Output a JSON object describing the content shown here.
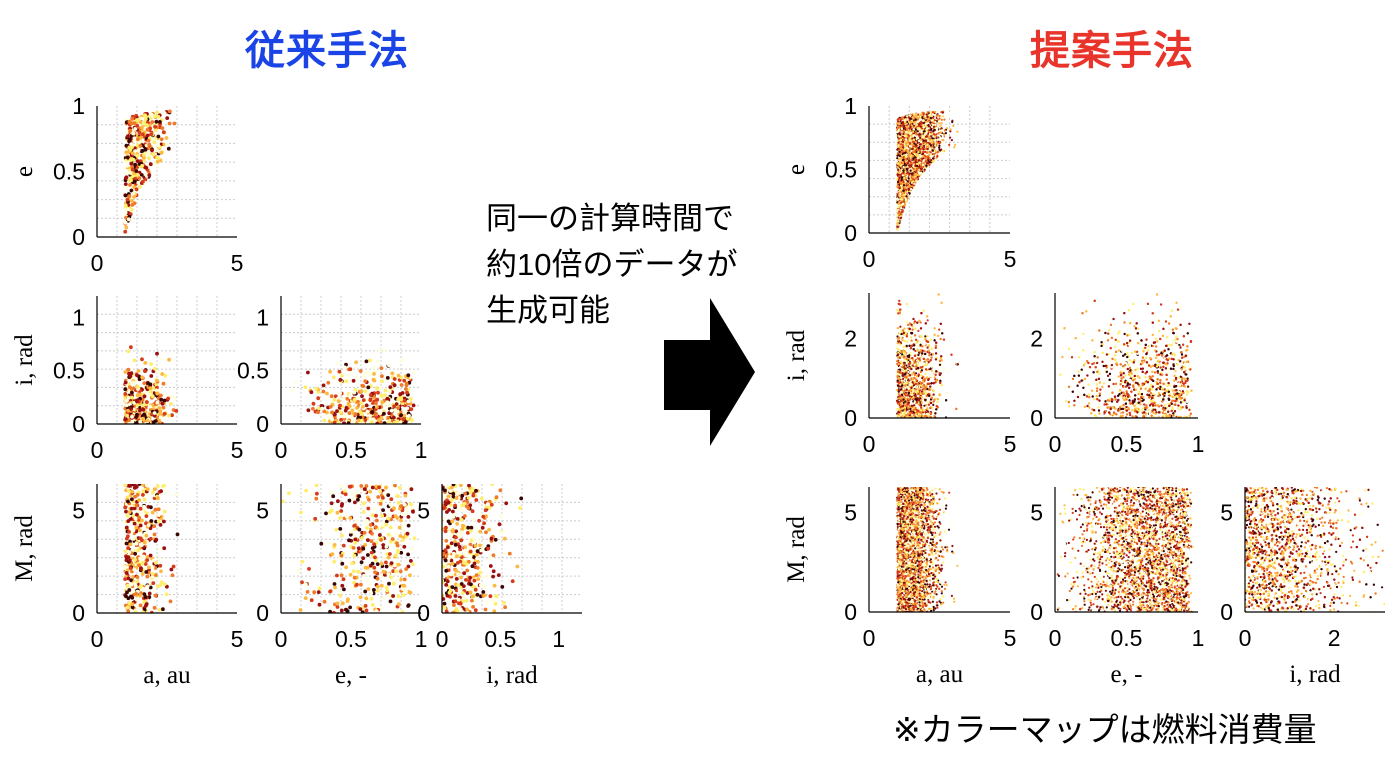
{
  "titles": {
    "left": "従来手法",
    "right": "提案手法"
  },
  "message": {
    "line1": "同一の計算時間で",
    "line2": "約10倍のデータが",
    "line3": "生成可能"
  },
  "note": "※カラーマップは燃料消費量",
  "colors": {
    "left_title": "#1b44e6",
    "right_title": "#e8342a",
    "arrow": "#000000",
    "colormap": [
      "#ffffe0",
      "#ffee6b",
      "#fdb93f",
      "#f07a2b",
      "#d73a1c",
      "#9c1010",
      "#3a0505"
    ]
  },
  "chart_data": [
    {
      "id": "L-ae",
      "type": "scatter",
      "group": "従来手法",
      "x_var": "a",
      "y_var": "e",
      "xlim": [
        0,
        5
      ],
      "ylim": [
        0,
        1
      ],
      "xticks": [
        "0",
        "5"
      ],
      "yticks": [
        "0",
        "0.5",
        "1"
      ],
      "xlabel": "",
      "ylabel": "e",
      "grid": true,
      "points": 420
    },
    {
      "id": "L-ai",
      "type": "scatter",
      "group": "従来手法",
      "x_var": "a",
      "y_var": "i",
      "xlim": [
        0,
        5
      ],
      "ylim": [
        0,
        1.2
      ],
      "xticks": [
        "0",
        "5"
      ],
      "yticks": [
        "0",
        "0.5",
        "1"
      ],
      "xlabel": "",
      "ylabel": "i, rad",
      "grid": true,
      "points": 420
    },
    {
      "id": "L-ei",
      "type": "scatter",
      "group": "従来手法",
      "x_var": "e",
      "y_var": "i",
      "xlim": [
        0,
        1
      ],
      "ylim": [
        0,
        1.2
      ],
      "xticks": [
        "0",
        "0.5",
        "1"
      ],
      "yticks": [
        "0",
        "0.5",
        "1"
      ],
      "xlabel": "",
      "ylabel": "",
      "grid": true,
      "points": 420
    },
    {
      "id": "L-aM",
      "type": "scatter",
      "group": "従来手法",
      "x_var": "a",
      "y_var": "M",
      "xlim": [
        0,
        5
      ],
      "ylim": [
        0,
        6.28
      ],
      "xticks": [
        "0",
        "5"
      ],
      "yticks": [
        "0",
        "5"
      ],
      "xlabel": "a, au",
      "ylabel": "M, rad",
      "grid": true,
      "points": 420
    },
    {
      "id": "L-eM",
      "type": "scatter",
      "group": "従来手法",
      "x_var": "e",
      "y_var": "M",
      "xlim": [
        0,
        1
      ],
      "ylim": [
        0,
        6.28
      ],
      "xticks": [
        "0",
        "0.5",
        "1"
      ],
      "yticks": [
        "0",
        "5"
      ],
      "xlabel": "e, -",
      "ylabel": "",
      "grid": true,
      "points": 420
    },
    {
      "id": "L-iM",
      "type": "scatter",
      "group": "従来手法",
      "x_var": "i",
      "y_var": "M",
      "xlim": [
        0,
        1.2
      ],
      "ylim": [
        0,
        6.28
      ],
      "xticks": [
        "0",
        "0.5",
        "1"
      ],
      "yticks": [
        "0",
        "5"
      ],
      "xlabel": "i, rad",
      "ylabel": "",
      "grid": true,
      "points": 420
    },
    {
      "id": "R-ae",
      "type": "scatter",
      "group": "提案手法",
      "x_var": "a",
      "y_var": "e",
      "xlim": [
        0,
        5
      ],
      "ylim": [
        0,
        1
      ],
      "xticks": [
        "0",
        "5"
      ],
      "yticks": [
        "0",
        "0.5",
        "1"
      ],
      "xlabel": "",
      "ylabel": "e",
      "grid": true,
      "points": 3000
    },
    {
      "id": "R-ai",
      "type": "scatter",
      "group": "提案手法",
      "x_var": "a",
      "y_var": "i",
      "xlim": [
        0,
        5
      ],
      "ylim": [
        0,
        3.14
      ],
      "xticks": [
        "0",
        "5"
      ],
      "yticks": [
        "0",
        "2"
      ],
      "xlabel": "",
      "ylabel": "i, rad",
      "grid": false,
      "points": 3000
    },
    {
      "id": "R-ei",
      "type": "scatter",
      "group": "提案手法",
      "x_var": "e",
      "y_var": "i",
      "xlim": [
        0,
        1
      ],
      "ylim": [
        0,
        3.14
      ],
      "xticks": [
        "0",
        "0.5",
        "1"
      ],
      "yticks": [
        "0",
        "2"
      ],
      "xlabel": "",
      "ylabel": "",
      "grid": false,
      "points": 3000
    },
    {
      "id": "R-aM",
      "type": "scatter",
      "group": "提案手法",
      "x_var": "a",
      "y_var": "M",
      "xlim": [
        0,
        5
      ],
      "ylim": [
        0,
        6.28
      ],
      "xticks": [
        "0",
        "5"
      ],
      "yticks": [
        "0",
        "5"
      ],
      "xlabel": "a, au",
      "ylabel": "M, rad",
      "grid": false,
      "points": 3000
    },
    {
      "id": "R-eM",
      "type": "scatter",
      "group": "提案手法",
      "x_var": "e",
      "y_var": "M",
      "xlim": [
        0,
        1
      ],
      "ylim": [
        0,
        6.28
      ],
      "xticks": [
        "0",
        "0.5",
        "1"
      ],
      "yticks": [
        "0",
        "5"
      ],
      "xlabel": "e, -",
      "ylabel": "",
      "grid": false,
      "points": 3000
    },
    {
      "id": "R-iM",
      "type": "scatter",
      "group": "提案手法",
      "x_var": "i",
      "y_var": "M",
      "xlim": [
        0,
        3.14
      ],
      "ylim": [
        0,
        6.28
      ],
      "xticks": [
        "0",
        "2"
      ],
      "yticks": [
        "0",
        "5"
      ],
      "xlabel": "i, rad",
      "ylabel": "",
      "grid": false,
      "points": 3000
    }
  ]
}
